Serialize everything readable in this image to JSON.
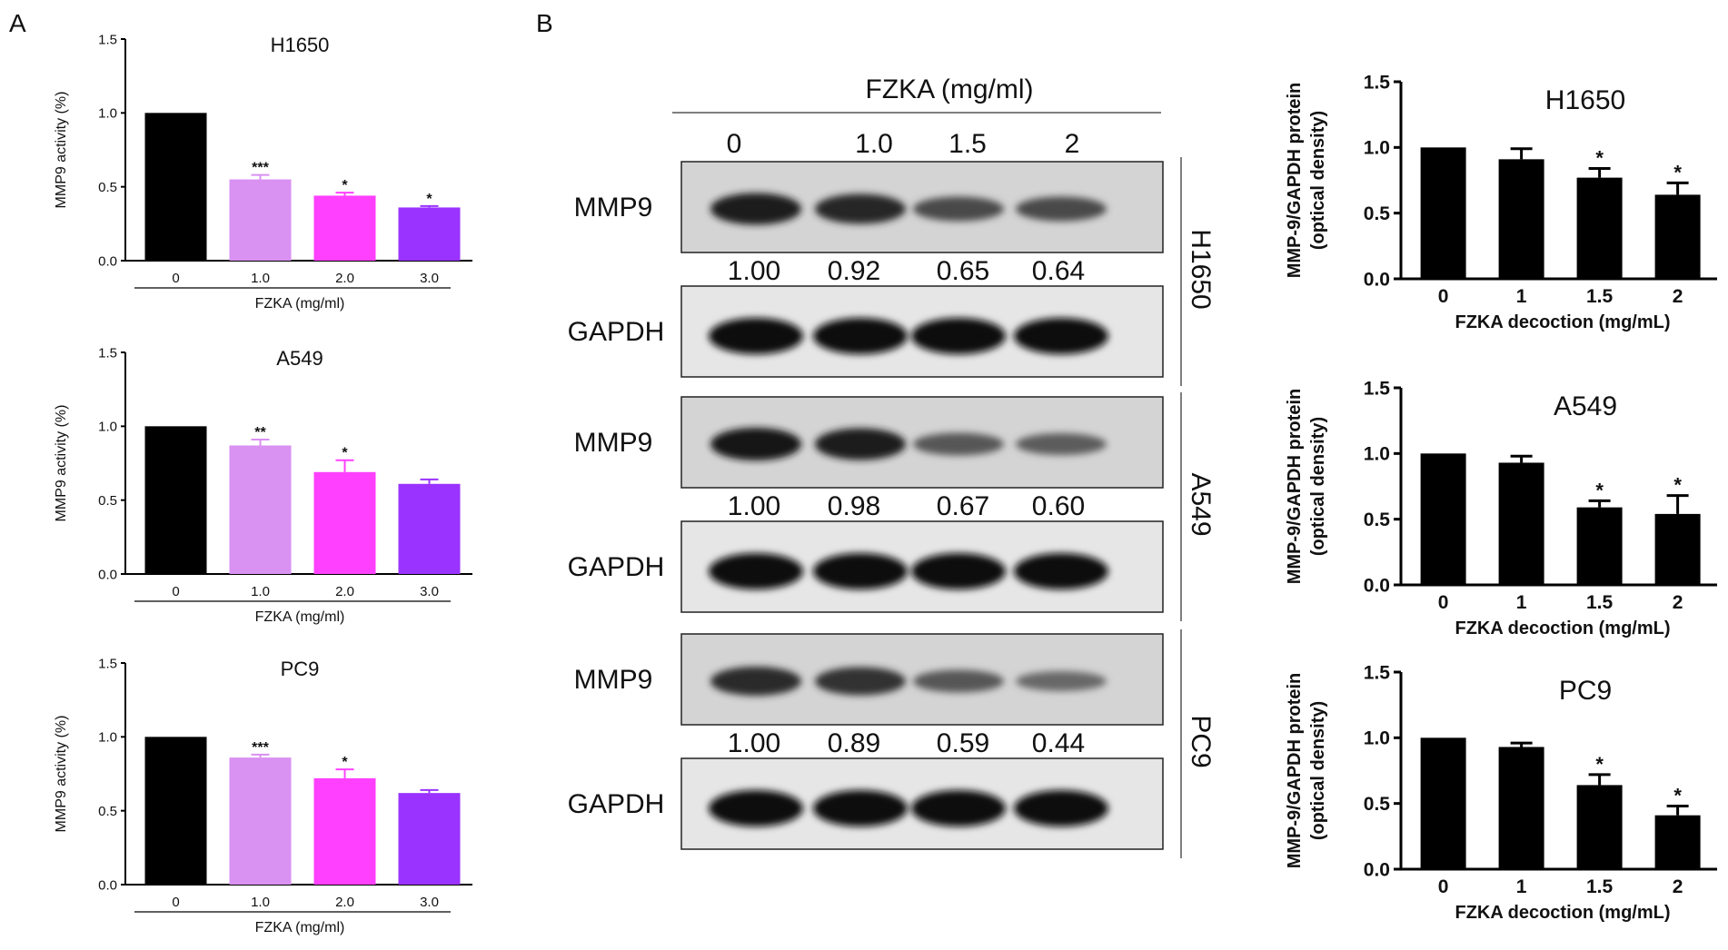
{
  "panels": {
    "a_label": "A",
    "b_label": "B"
  },
  "colors": {
    "black": "#000000",
    "lavender": "#d991f2",
    "magenta": "#ff40ff",
    "purple": "#9a33ff"
  },
  "chart_data": [
    {
      "type": "bar",
      "title": "H1650",
      "xlabel": "FZKA (mg/ml)",
      "ylabel": "MMP9 activity (%)",
      "categories": [
        "0",
        "1.0",
        "2.0",
        "3.0"
      ],
      "values": [
        1.0,
        0.55,
        0.44,
        0.36
      ],
      "errors": [
        0,
        0.03,
        0.02,
        0.01
      ],
      "significance": [
        "",
        "***",
        "*",
        "*"
      ],
      "ylim": [
        0,
        1.5
      ],
      "yticks": [
        "0.0",
        "0.5",
        "1.0",
        "1.5"
      ],
      "bar_colors": [
        "#000000",
        "#d991f2",
        "#ff40ff",
        "#9a33ff"
      ]
    },
    {
      "type": "bar",
      "title": "A549",
      "xlabel": "FZKA (mg/ml)",
      "ylabel": "MMP9 activity (%)",
      "categories": [
        "0",
        "1.0",
        "2.0",
        "3.0"
      ],
      "values": [
        1.0,
        0.87,
        0.69,
        0.61
      ],
      "errors": [
        0,
        0.04,
        0.08,
        0.03
      ],
      "significance": [
        "",
        "**",
        "*",
        ""
      ],
      "ylim": [
        0,
        1.5
      ],
      "yticks": [
        "0.0",
        "0.5",
        "1.0",
        "1.5"
      ],
      "bar_colors": [
        "#000000",
        "#d991f2",
        "#ff40ff",
        "#9a33ff"
      ]
    },
    {
      "type": "bar",
      "title": "PC9",
      "xlabel": "FZKA (mg/ml)",
      "ylabel": "MMP9 activity (%)",
      "categories": [
        "0",
        "1.0",
        "2.0",
        "3.0"
      ],
      "values": [
        1.0,
        0.86,
        0.72,
        0.62
      ],
      "errors": [
        0,
        0.02,
        0.06,
        0.02
      ],
      "significance": [
        "",
        "***",
        "*",
        ""
      ],
      "ylim": [
        0,
        1.5
      ],
      "yticks": [
        "0.0",
        "0.5",
        "1.0",
        "1.5"
      ],
      "bar_colors": [
        "#000000",
        "#d991f2",
        "#ff40ff",
        "#9a33ff"
      ]
    },
    {
      "type": "bar",
      "title": "H1650",
      "xlabel": "FZKA decoction (mg/mL)",
      "ylabel": "MMP-9/GAPDH protein (optical density)",
      "categories": [
        "0",
        "1",
        "1.5",
        "2"
      ],
      "values": [
        1.0,
        0.91,
        0.77,
        0.64
      ],
      "errors": [
        0,
        0.08,
        0.07,
        0.09
      ],
      "significance": [
        "",
        "",
        "*",
        "*"
      ],
      "ylim": [
        0,
        1.5
      ],
      "yticks": [
        "0.0",
        "0.5",
        "1.0",
        "1.5"
      ],
      "bar_colors": [
        "#000000",
        "#000000",
        "#000000",
        "#000000"
      ]
    },
    {
      "type": "bar",
      "title": "A549",
      "xlabel": "FZKA decoction (mg/mL)",
      "ylabel": "MMP-9/GAPDH protein (optical density)",
      "categories": [
        "0",
        "1",
        "1.5",
        "2"
      ],
      "values": [
        1.0,
        0.93,
        0.59,
        0.54
      ],
      "errors": [
        0,
        0.05,
        0.05,
        0.14
      ],
      "significance": [
        "",
        "",
        "*",
        "*"
      ],
      "ylim": [
        0,
        1.5
      ],
      "yticks": [
        "0.0",
        "0.5",
        "1.0",
        "1.5"
      ],
      "bar_colors": [
        "#000000",
        "#000000",
        "#000000",
        "#000000"
      ]
    },
    {
      "type": "bar",
      "title": "PC9",
      "xlabel": "FZKA decoction (mg/mL)",
      "ylabel": "MMP-9/GAPDH protein (optical density)",
      "categories": [
        "0",
        "1",
        "1.5",
        "2"
      ],
      "values": [
        1.0,
        0.93,
        0.64,
        0.41
      ],
      "errors": [
        0,
        0.03,
        0.08,
        0.07
      ],
      "significance": [
        "",
        "",
        "*",
        "*"
      ],
      "ylim": [
        0,
        1.5
      ],
      "yticks": [
        "0.0",
        "0.5",
        "1.0",
        "1.5"
      ],
      "bar_colors": [
        "#000000",
        "#000000",
        "#000000",
        "#000000"
      ]
    }
  ],
  "western_blot": {
    "header": "FZKA (mg/ml)",
    "lanes": [
      "0",
      "1.0",
      "1.5",
      "2"
    ],
    "blocks": [
      {
        "cell_line": "H1650",
        "protein": "MMP9",
        "control": "GAPDH",
        "ratios": [
          "1.00",
          "0.92",
          "0.65",
          "0.64"
        ],
        "band_intensity": [
          0.95,
          0.85,
          0.55,
          0.55
        ],
        "control_intensity": [
          1.0,
          1.0,
          1.0,
          1.0
        ]
      },
      {
        "cell_line": "A549",
        "protein": "MMP9",
        "control": "GAPDH",
        "ratios": [
          "1.00",
          "0.98",
          "0.67",
          "0.60"
        ],
        "band_intensity": [
          1.0,
          0.95,
          0.45,
          0.4
        ],
        "control_intensity": [
          1.0,
          1.0,
          1.0,
          1.0
        ]
      },
      {
        "cell_line": "PC9",
        "protein": "MMP9",
        "control": "GAPDH",
        "ratios": [
          "1.00",
          "0.89",
          "0.59",
          "0.44"
        ],
        "band_intensity": [
          0.8,
          0.75,
          0.45,
          0.3
        ],
        "control_intensity": [
          1.0,
          1.0,
          1.0,
          1.0
        ]
      }
    ]
  }
}
